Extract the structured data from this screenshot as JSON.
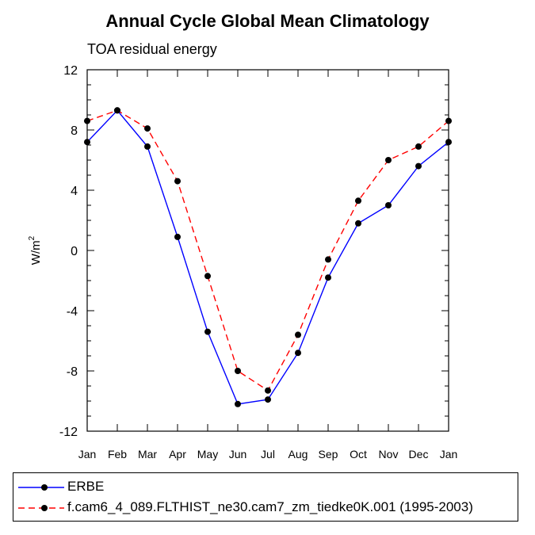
{
  "chart_data": {
    "type": "line",
    "title": "Annual Cycle Global Mean Climatology",
    "subtitle": "TOA residual energy",
    "ylabel": "W/m",
    "ylabel_superscript": "2",
    "xlabel": "",
    "categories": [
      "Jan",
      "Feb",
      "Mar",
      "Apr",
      "May",
      "Jun",
      "Jul",
      "Aug",
      "Sep",
      "Oct",
      "Nov",
      "Dec",
      "Jan"
    ],
    "ylim": [
      -12,
      12
    ],
    "yticks": [
      -12,
      -8,
      -4,
      0,
      4,
      8,
      12
    ],
    "grid": false,
    "legend_position": "bottom",
    "series": [
      {
        "name": "ERBE",
        "color": "#0000ff",
        "line_style": "solid",
        "marker": "filled-circle",
        "values": [
          7.2,
          9.3,
          6.9,
          0.9,
          -5.4,
          -10.2,
          -9.9,
          -6.8,
          -1.8,
          1.8,
          3.0,
          5.6,
          7.2
        ]
      },
      {
        "name": "f.cam6_4_089.FLTHIST_ne30.cam7_zm_tiedke0K.001 (1995-2003)",
        "color": "#ff0000",
        "line_style": "dashed",
        "marker": "filled-circle",
        "values": [
          8.6,
          9.3,
          8.1,
          4.6,
          -1.7,
          -8.0,
          -9.3,
          -5.6,
          -0.6,
          3.3,
          6.0,
          6.9,
          8.6
        ]
      }
    ]
  }
}
